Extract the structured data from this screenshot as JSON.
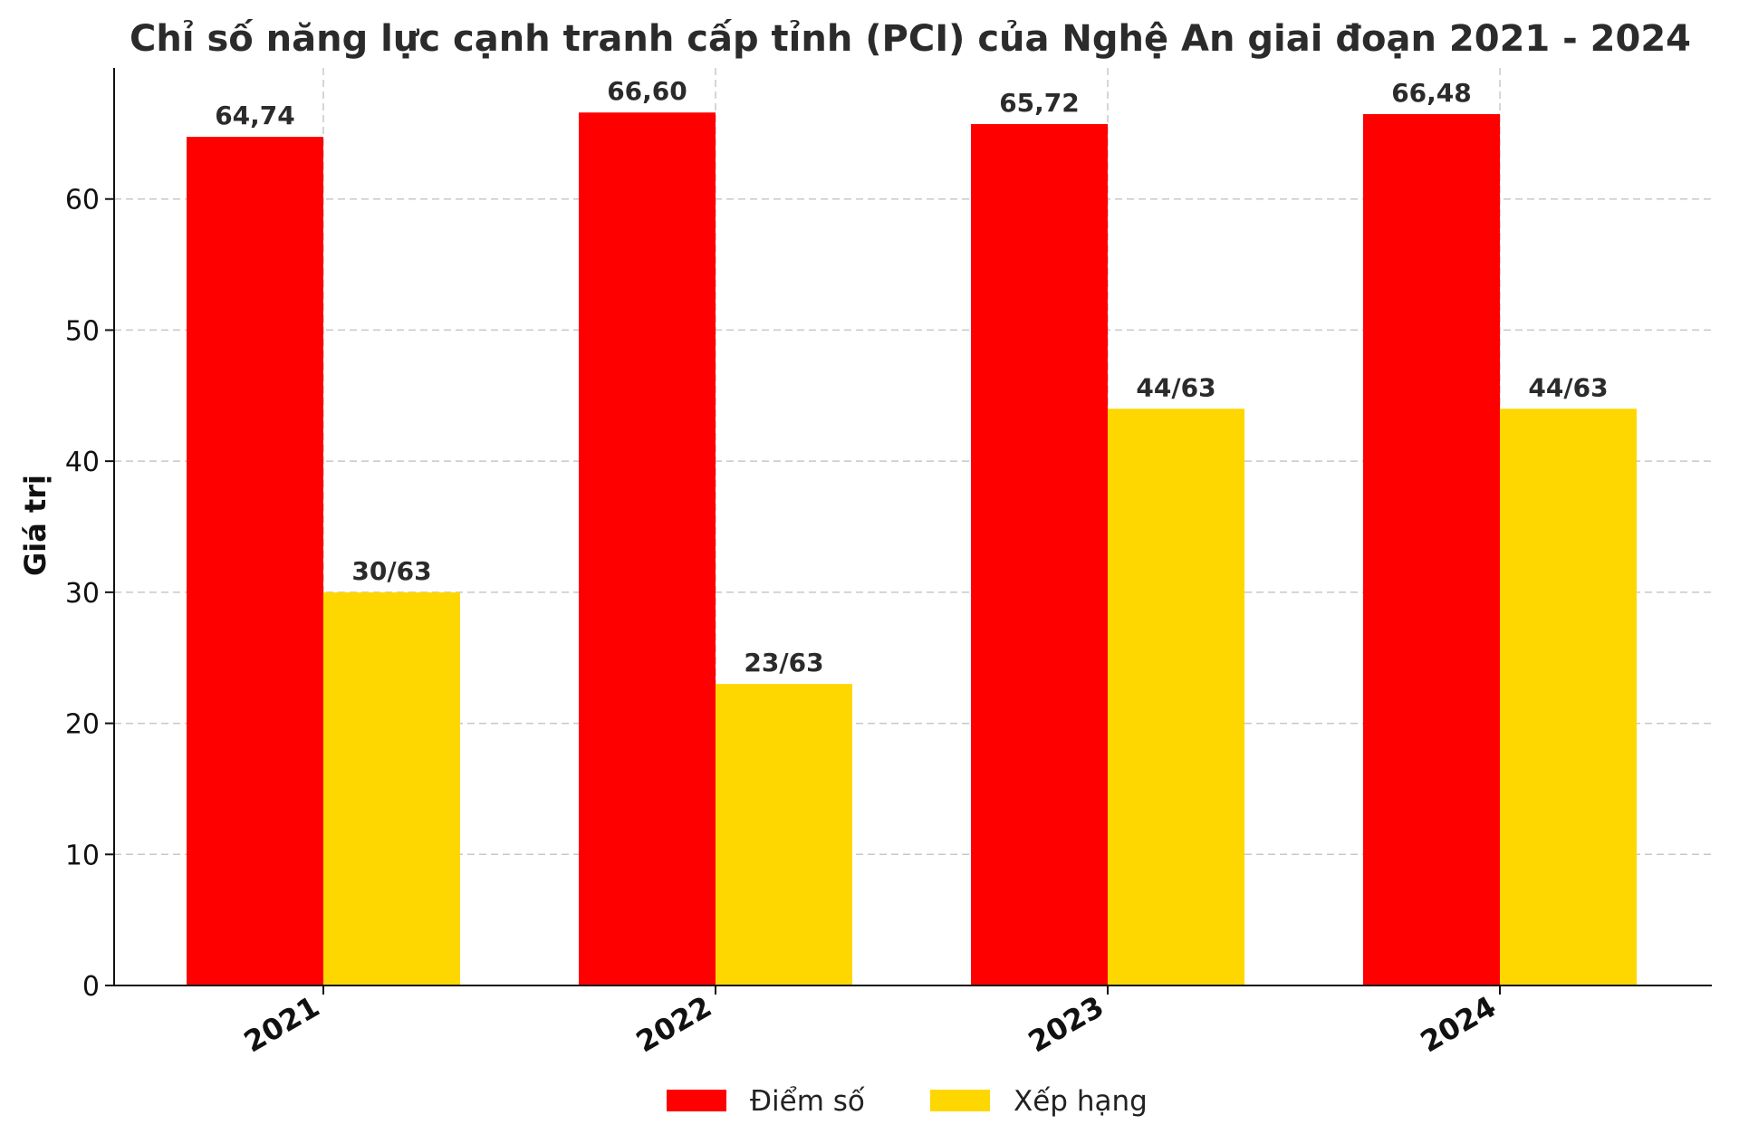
{
  "chart_data": {
    "type": "bar",
    "title": "Chỉ số năng lực cạnh tranh cấp tỉnh (PCI) của Nghệ An giai đoạn 2021 - 2024",
    "xlabel": "",
    "ylabel": "Giá trị",
    "categories": [
      "2021",
      "2022",
      "2023",
      "2024"
    ],
    "ylim": [
      0,
      70
    ],
    "yticks": [
      0,
      10,
      20,
      30,
      40,
      50,
      60
    ],
    "grid": true,
    "legend_position": "bottom-center",
    "series": [
      {
        "name": "Điểm số",
        "color": "#ff0000",
        "values": [
          64.74,
          66.6,
          65.72,
          66.48
        ],
        "labels": [
          "64,74",
          "66,60",
          "65,72",
          "66,48"
        ]
      },
      {
        "name": "Xếp hạng",
        "color": "#ffd700",
        "values": [
          30,
          23,
          44,
          44
        ],
        "labels": [
          "30/63",
          "23/63",
          "44/63",
          "44/63"
        ]
      }
    ]
  }
}
